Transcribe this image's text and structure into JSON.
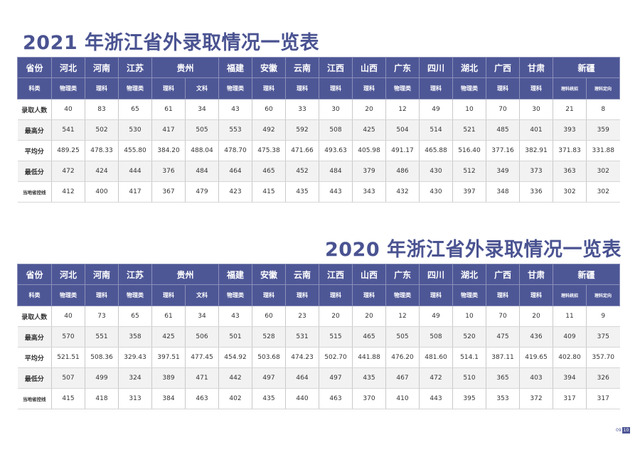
{
  "tables": [
    {
      "title": "2021 年浙江省外录取情况一览表",
      "header_label": "省份",
      "category_label": "科类",
      "provinces": [
        "河北",
        "河南",
        "江苏",
        "贵州",
        "福建",
        "安徽",
        "云南",
        "江西",
        "山西",
        "广东",
        "四川",
        "湖北",
        "广西",
        "甘肃",
        "新疆"
      ],
      "categories": [
        "物理类",
        "理科",
        "物理类",
        "理科",
        "文科",
        "物理类",
        "理科",
        "理科",
        "理科",
        "理科",
        "物理类",
        "理科",
        "物理类",
        "理科",
        "理科",
        "理科统招",
        "理科定向"
      ],
      "rows": [
        {
          "label": "录取人数",
          "values": [
            "40",
            "83",
            "65",
            "61",
            "34",
            "43",
            "60",
            "33",
            "30",
            "20",
            "12",
            "49",
            "10",
            "70",
            "30",
            "21",
            "8"
          ]
        },
        {
          "label": "最高分",
          "values": [
            "541",
            "502",
            "530",
            "417",
            "505",
            "553",
            "492",
            "592",
            "508",
            "425",
            "504",
            "514",
            "521",
            "485",
            "401",
            "393",
            "359"
          ]
        },
        {
          "label": "平均分",
          "values": [
            "489.25",
            "478.33",
            "455.80",
            "384.20",
            "488.04",
            "478.70",
            "475.38",
            "471.66",
            "493.63",
            "405.98",
            "491.17",
            "465.88",
            "516.40",
            "377.16",
            "382.91",
            "371.83",
            "331.88"
          ]
        },
        {
          "label": "最低分",
          "values": [
            "472",
            "424",
            "444",
            "376",
            "484",
            "464",
            "465",
            "452",
            "484",
            "379",
            "486",
            "430",
            "512",
            "349",
            "373",
            "363",
            "302"
          ]
        },
        {
          "label": "当地省控线",
          "values": [
            "412",
            "400",
            "417",
            "367",
            "479",
            "423",
            "415",
            "435",
            "443",
            "343",
            "432",
            "430",
            "397",
            "348",
            "336",
            "302",
            "302"
          ]
        }
      ]
    },
    {
      "title": "2020 年浙江省外录取情况一览表",
      "header_label": "省份",
      "category_label": "科类",
      "provinces": [
        "河北",
        "河南",
        "江苏",
        "贵州",
        "福建",
        "安徽",
        "云南",
        "江西",
        "山西",
        "广东",
        "四川",
        "湖北",
        "广西",
        "甘肃",
        "新疆"
      ],
      "categories": [
        "物理类",
        "理科",
        "物理类",
        "理科",
        "文科",
        "物理类",
        "理科",
        "理科",
        "理科",
        "理科",
        "物理类",
        "理科",
        "物理类",
        "理科",
        "理科",
        "理科统招",
        "理科定向"
      ],
      "rows": [
        {
          "label": "录取人数",
          "values": [
            "40",
            "73",
            "65",
            "61",
            "34",
            "43",
            "60",
            "23",
            "20",
            "20",
            "12",
            "49",
            "10",
            "70",
            "20",
            "11",
            "9"
          ]
        },
        {
          "label": "最高分",
          "values": [
            "570",
            "551",
            "358",
            "425",
            "506",
            "501",
            "528",
            "531",
            "515",
            "465",
            "505",
            "508",
            "520",
            "475",
            "436",
            "409",
            "375"
          ]
        },
        {
          "label": "平均分",
          "values": [
            "521.51",
            "508.36",
            "329.43",
            "397.51",
            "477.45",
            "454.92",
            "503.68",
            "474.23",
            "502.70",
            "441.88",
            "476.20",
            "481.60",
            "514.1",
            "387.11",
            "419.65",
            "402.80",
            "357.70"
          ]
        },
        {
          "label": "最低分",
          "values": [
            "507",
            "499",
            "324",
            "389",
            "471",
            "442",
            "497",
            "464",
            "497",
            "435",
            "467",
            "472",
            "510",
            "365",
            "403",
            "394",
            "326"
          ]
        },
        {
          "label": "当地省控线",
          "values": [
            "415",
            "418",
            "313",
            "384",
            "463",
            "402",
            "435",
            "440",
            "463",
            "370",
            "410",
            "443",
            "395",
            "353",
            "372",
            "317",
            "317"
          ]
        }
      ]
    }
  ],
  "page": {
    "current": "09",
    "total": "10"
  },
  "colors": {
    "title": "#4a5391",
    "header_bg": "#4e5796",
    "row_alt": "#f2f2f2"
  }
}
